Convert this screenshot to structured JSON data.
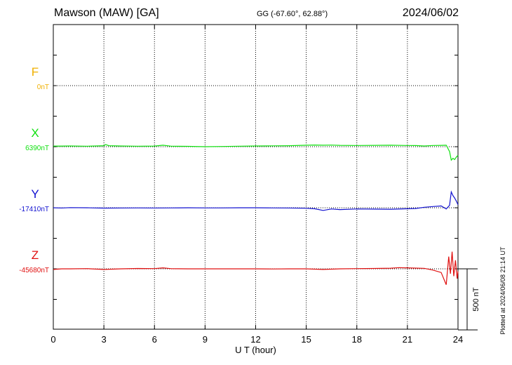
{
  "header": {
    "station": "Mawson (MAW)  [GA]",
    "coords": "GG (-67.60°,  62.88°)",
    "date": "2024/06/02"
  },
  "side_note": "Plotted at 2024/06/08 21:14 UT",
  "chart_data": {
    "type": "line",
    "xlabel": "U T (hour)",
    "xlim": [
      0,
      24
    ],
    "xticks": [
      0,
      3,
      6,
      9,
      12,
      15,
      18,
      21,
      24
    ],
    "scale_bar": {
      "label": "500 nT",
      "value": 500
    },
    "channels": [
      {
        "name": "F",
        "baseline": "0nT",
        "color": "#f0b000",
        "offset_slot": 0,
        "values": []
      },
      {
        "name": "X",
        "baseline": "6390nT",
        "color": "#10e010",
        "offset_slot": 1,
        "x": [
          0,
          0.5,
          1,
          2,
          3,
          3.1,
          3.3,
          4,
          5,
          6,
          6.5,
          7,
          8,
          9,
          10,
          11,
          12,
          13,
          14,
          15,
          15.5,
          16,
          16.5,
          17,
          18,
          19,
          20,
          21,
          21.5,
          22,
          22.5,
          23,
          23.3,
          23.5,
          23.6,
          23.7,
          23.8,
          23.9,
          24
        ],
        "values": [
          5,
          5,
          6,
          4,
          8,
          18,
          8,
          6,
          4,
          5,
          12,
          4,
          3,
          0,
          2,
          4,
          6,
          7,
          8,
          12,
          14,
          12,
          13,
          11,
          10,
          11,
          12,
          10,
          9,
          6,
          10,
          11,
          12,
          -40,
          -110,
          -95,
          -105,
          -85,
          -70
        ]
      },
      {
        "name": "Y",
        "baseline": "-17410nT",
        "color": "#1010d0",
        "offset_slot": 2,
        "x": [
          0,
          0.5,
          1,
          2,
          3,
          4,
          5,
          6,
          7,
          8,
          9,
          10,
          11,
          12,
          13,
          14,
          15,
          15.5,
          16,
          16.5,
          17,
          18,
          19,
          20,
          21,
          21.5,
          22,
          22.5,
          23,
          23.3,
          23.5,
          23.6,
          23.7,
          23.8,
          23.9,
          24
        ],
        "values": [
          0,
          -2,
          1,
          0,
          -3,
          -2,
          -1,
          -2,
          -1,
          0,
          -1,
          -1,
          0,
          0,
          -1,
          -2,
          -4,
          -8,
          -22,
          -10,
          -15,
          -10,
          -11,
          -12,
          -8,
          -6,
          4,
          10,
          15,
          -10,
          20,
          130,
          100,
          80,
          55,
          25
        ]
      },
      {
        "name": "Z",
        "baseline": "-45680nT",
        "color": "#e01010",
        "offset_slot": 3,
        "x": [
          0,
          0.5,
          1,
          2,
          3,
          4,
          5,
          6,
          6.5,
          7,
          8,
          9,
          10,
          11,
          12,
          13,
          14,
          15,
          16,
          17,
          18,
          19,
          20,
          20.5,
          21,
          21.5,
          22,
          22.5,
          23,
          23.3,
          23.45,
          23.55,
          23.65,
          23.75,
          23.85,
          23.95,
          24
        ],
        "values": [
          -5,
          0,
          0,
          2,
          -5,
          0,
          3,
          2,
          8,
          1,
          0,
          0,
          0,
          0,
          0,
          -1,
          0,
          0,
          -5,
          0,
          2,
          3,
          5,
          10,
          8,
          6,
          4,
          -10,
          -30,
          -130,
          100,
          -40,
          140,
          -60,
          70,
          -80,
          -20
        ]
      }
    ]
  }
}
